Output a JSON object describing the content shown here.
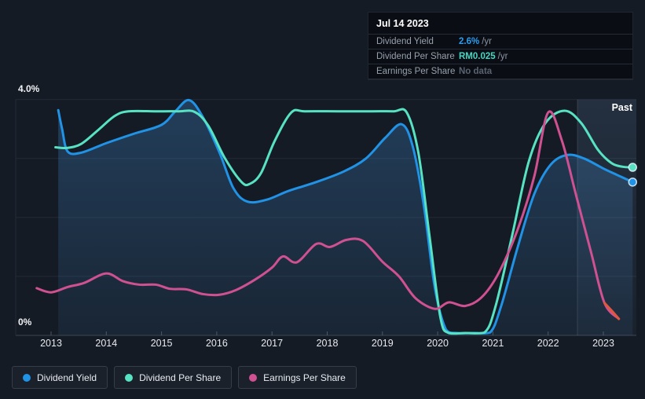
{
  "past_label": "Past",
  "axis": {
    "y_top_label": "4.0%",
    "y_bottom_label": "0%",
    "years": [
      "2013",
      "2014",
      "2015",
      "2016",
      "2017",
      "2018",
      "2019",
      "2020",
      "2021",
      "2022",
      "2023"
    ]
  },
  "tooltip": {
    "date": "Jul 14 2023",
    "rows": [
      {
        "label": "Dividend Yield",
        "value": "2.6%",
        "suffix": "/yr",
        "value_color": "#2b9df0"
      },
      {
        "label": "Dividend Per Share",
        "value": "RM0.025",
        "suffix": "/yr",
        "value_color": "#47d6c2"
      },
      {
        "label": "Earnings Per Share",
        "value": "No data",
        "suffix": "",
        "value_color": "#5a6270"
      }
    ]
  },
  "legend": [
    {
      "label": "Dividend Yield",
      "color": "#2193e6"
    },
    {
      "label": "Dividend Per Share",
      "color": "#57e3c3"
    },
    {
      "label": "Earnings Per Share",
      "color": "#cf5191"
    }
  ],
  "chart_data": {
    "type": "line",
    "title": "Dividend history (Past)",
    "x_axis": {
      "min": 2012.7,
      "max": 2023.55,
      "tick_years": [
        2013,
        2014,
        2015,
        2016,
        2017,
        2018,
        2019,
        2020,
        2021,
        2022,
        2023
      ]
    },
    "y_axis": {
      "min": 0,
      "max": 4,
      "unit": "%",
      "labeled_values": [
        0,
        4
      ],
      "gridline_values": [
        0,
        1,
        2,
        3,
        4
      ],
      "grid": true
    },
    "past_region_from": 2022.53,
    "legend_position": "bottom-left",
    "colors": {
      "yield": "#2193e6",
      "dps": "#57e3c3",
      "eps": "#cf5191",
      "eps_negative": "#e0573f",
      "area_fill": "#3d82c4"
    },
    "series": [
      {
        "name": "Dividend Yield",
        "color": "#2193e6",
        "style": "line+area",
        "end_dot": true,
        "points": [
          [
            2013.13,
            3.82
          ],
          [
            2013.2,
            3.5
          ],
          [
            2013.3,
            3.12
          ],
          [
            2013.55,
            3.1
          ],
          [
            2014.0,
            3.26
          ],
          [
            2014.5,
            3.42
          ],
          [
            2015.0,
            3.57
          ],
          [
            2015.25,
            3.8
          ],
          [
            2015.5,
            3.99
          ],
          [
            2015.75,
            3.7
          ],
          [
            2016.05,
            3.1
          ],
          [
            2016.3,
            2.5
          ],
          [
            2016.55,
            2.27
          ],
          [
            2016.9,
            2.3
          ],
          [
            2017.3,
            2.45
          ],
          [
            2017.8,
            2.6
          ],
          [
            2018.3,
            2.78
          ],
          [
            2018.7,
            3.0
          ],
          [
            2019.05,
            3.35
          ],
          [
            2019.35,
            3.58
          ],
          [
            2019.55,
            3.2
          ],
          [
            2019.75,
            2.2
          ],
          [
            2019.95,
            0.8
          ],
          [
            2020.15,
            0.1
          ],
          [
            2020.35,
            0.04
          ],
          [
            2020.65,
            0.04
          ],
          [
            2020.95,
            0.05
          ],
          [
            2021.15,
            0.5
          ],
          [
            2021.45,
            1.5
          ],
          [
            2021.75,
            2.4
          ],
          [
            2022.05,
            2.9
          ],
          [
            2022.35,
            3.06
          ],
          [
            2022.65,
            3.0
          ],
          [
            2023.0,
            2.83
          ],
          [
            2023.25,
            2.72
          ],
          [
            2023.53,
            2.6
          ]
        ]
      },
      {
        "name": "Dividend Per Share",
        "color": "#57e3c3",
        "style": "line",
        "end_dot": true,
        "points": [
          [
            2013.08,
            3.19
          ],
          [
            2013.3,
            3.18
          ],
          [
            2013.55,
            3.25
          ],
          [
            2013.85,
            3.48
          ],
          [
            2014.15,
            3.72
          ],
          [
            2014.4,
            3.8
          ],
          [
            2014.9,
            3.8
          ],
          [
            2015.3,
            3.8
          ],
          [
            2015.6,
            3.79
          ],
          [
            2015.85,
            3.55
          ],
          [
            2016.15,
            3.0
          ],
          [
            2016.45,
            2.6
          ],
          [
            2016.6,
            2.57
          ],
          [
            2016.8,
            2.75
          ],
          [
            2017.05,
            3.3
          ],
          [
            2017.35,
            3.78
          ],
          [
            2017.6,
            3.8
          ],
          [
            2018.2,
            3.8
          ],
          [
            2018.8,
            3.8
          ],
          [
            2019.2,
            3.8
          ],
          [
            2019.44,
            3.78
          ],
          [
            2019.65,
            3.1
          ],
          [
            2019.85,
            1.7
          ],
          [
            2020.05,
            0.3
          ],
          [
            2020.2,
            0.04
          ],
          [
            2020.5,
            0.04
          ],
          [
            2020.85,
            0.05
          ],
          [
            2021.05,
            0.5
          ],
          [
            2021.35,
            1.7
          ],
          [
            2021.65,
            2.95
          ],
          [
            2021.95,
            3.6
          ],
          [
            2022.3,
            3.81
          ],
          [
            2022.6,
            3.6
          ],
          [
            2022.9,
            3.15
          ],
          [
            2023.15,
            2.92
          ],
          [
            2023.35,
            2.86
          ],
          [
            2023.53,
            2.85
          ]
        ]
      },
      {
        "name": "Earnings Per Share",
        "color": "#cf5191",
        "style": "line",
        "end_dot": false,
        "points": [
          [
            2012.74,
            0.8
          ],
          [
            2013.0,
            0.73
          ],
          [
            2013.3,
            0.82
          ],
          [
            2013.6,
            0.89
          ],
          [
            2014.0,
            1.05
          ],
          [
            2014.3,
            0.92
          ],
          [
            2014.6,
            0.86
          ],
          [
            2014.9,
            0.86
          ],
          [
            2015.15,
            0.79
          ],
          [
            2015.45,
            0.78
          ],
          [
            2015.75,
            0.7
          ],
          [
            2016.05,
            0.69
          ],
          [
            2016.35,
            0.77
          ],
          [
            2016.7,
            0.95
          ],
          [
            2017.0,
            1.15
          ],
          [
            2017.2,
            1.34
          ],
          [
            2017.45,
            1.24
          ],
          [
            2017.8,
            1.55
          ],
          [
            2018.05,
            1.5
          ],
          [
            2018.35,
            1.62
          ],
          [
            2018.65,
            1.6
          ],
          [
            2019.0,
            1.25
          ],
          [
            2019.3,
            1.0
          ],
          [
            2019.6,
            0.63
          ],
          [
            2019.95,
            0.45
          ],
          [
            2020.2,
            0.56
          ],
          [
            2020.5,
            0.5
          ],
          [
            2020.8,
            0.65
          ],
          [
            2021.1,
            1.05
          ],
          [
            2021.45,
            1.8
          ],
          [
            2021.75,
            2.7
          ],
          [
            2022.0,
            3.78
          ],
          [
            2022.25,
            3.3
          ],
          [
            2022.5,
            2.4
          ],
          [
            2022.78,
            1.4
          ],
          [
            2023.02,
            0.55
          ],
          [
            2023.28,
            0.28
          ]
        ],
        "negative_tail_color": "#e0573f",
        "negative_tail_points": [
          [
            2023.02,
            0.55
          ],
          [
            2023.16,
            0.41
          ],
          [
            2023.28,
            0.28
          ]
        ]
      }
    ]
  }
}
